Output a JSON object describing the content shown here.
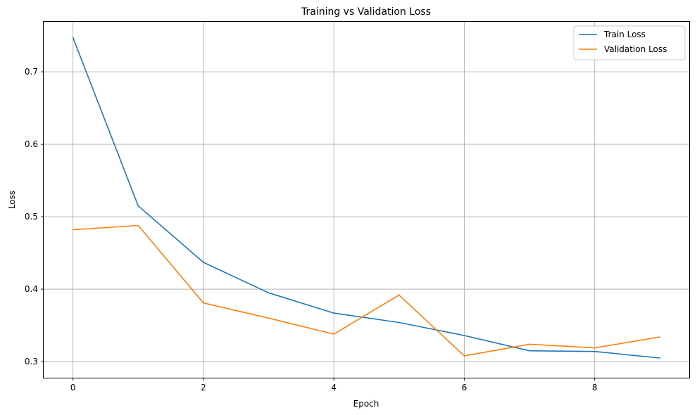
{
  "chart_data": {
    "type": "line",
    "title": "Training vs Validation Loss",
    "xlabel": "Epoch",
    "ylabel": "Loss",
    "x": [
      0,
      1,
      2,
      3,
      4,
      5,
      6,
      7,
      8,
      9
    ],
    "xlim": [
      -0.45,
      9.45
    ],
    "ylim": [
      0.2778,
      0.769
    ],
    "xticks": [
      0,
      2,
      4,
      6,
      8
    ],
    "yticks": [
      0.3,
      0.4,
      0.5,
      0.6,
      0.7
    ],
    "xtick_labels": [
      "0",
      "2",
      "4",
      "6",
      "8"
    ],
    "ytick_labels": [
      "0.3",
      "0.4",
      "0.5",
      "0.6",
      "0.7"
    ],
    "grid": true,
    "legend_position": "top-right",
    "series": [
      {
        "name": "Train Loss",
        "color": "#1f77b4",
        "values": [
          0.747,
          0.515,
          0.437,
          0.395,
          0.367,
          0.354,
          0.336,
          0.315,
          0.314,
          0.305
        ]
      },
      {
        "name": "Validation Loss",
        "color": "#ff7f0e",
        "values": [
          0.482,
          0.488,
          0.381,
          0.36,
          0.338,
          0.392,
          0.308,
          0.324,
          0.319,
          0.334
        ]
      }
    ]
  }
}
